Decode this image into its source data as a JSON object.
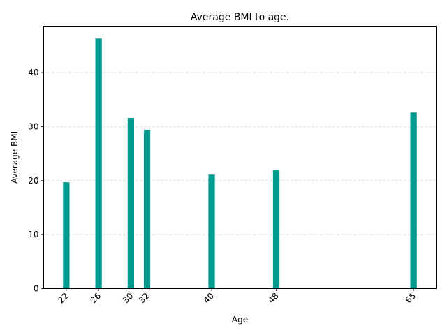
{
  "chart_data": {
    "type": "bar",
    "title": "Average BMI to age.",
    "xlabel": "Age",
    "ylabel": "Average BMI",
    "x": [
      22,
      26,
      30,
      32,
      40,
      48,
      65
    ],
    "values": [
      19.7,
      46.3,
      31.6,
      29.4,
      21.1,
      21.9,
      32.6
    ],
    "xticks": [
      "22",
      "26",
      "30",
      "32",
      "40",
      "48",
      "65"
    ],
    "yticks": [
      0,
      10,
      20,
      30,
      40
    ],
    "xlim": [
      19.2,
      67.8
    ],
    "ylim": [
      0,
      48.6
    ],
    "grid": "y-dashed",
    "bar_color": "#009b8f",
    "grid_color": "#cccccc"
  }
}
